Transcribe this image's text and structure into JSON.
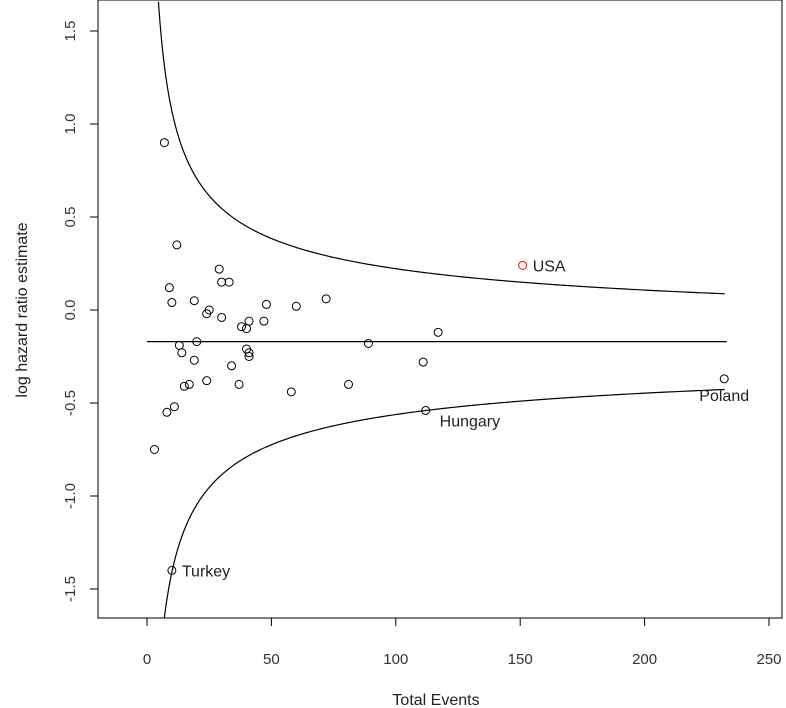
{
  "chart_data": {
    "type": "scatter",
    "title": "",
    "xlabel": "Total Events",
    "ylabel": "log hazard ratio estimate",
    "xlim": [
      -20,
      253
    ],
    "ylim": [
      -1.65,
      1.6
    ],
    "xticks": [
      0,
      50,
      100,
      150,
      200,
      250
    ],
    "xtick_labels": [
      "0",
      "50",
      "100",
      "150",
      "200",
      "250"
    ],
    "yticks": [
      -1.5,
      -1.0,
      -0.5,
      0.0,
      0.5,
      1.0,
      1.5
    ],
    "ytick_labels": [
      "-1.5",
      "-1.0",
      "-0.5",
      "0.0",
      "0.5",
      "1.0",
      "1.5"
    ],
    "grid": false,
    "pooled_estimate": -0.17,
    "funnel_limits": {
      "description": "95% control limits around pooled estimate",
      "center": -0.17,
      "z": 1.96,
      "x_range": [
        5,
        233
      ]
    },
    "points": [
      {
        "x": 3,
        "y": -0.75
      },
      {
        "x": 7,
        "y": 0.9
      },
      {
        "x": 8,
        "y": -0.55
      },
      {
        "x": 9,
        "y": 0.12
      },
      {
        "x": 10,
        "y": 0.04
      },
      {
        "x": 10,
        "y": -1.4,
        "label": "Turkey"
      },
      {
        "x": 11,
        "y": -0.52
      },
      {
        "x": 12,
        "y": 0.35
      },
      {
        "x": 13,
        "y": -0.19
      },
      {
        "x": 14,
        "y": -0.23
      },
      {
        "x": 15,
        "y": -0.41
      },
      {
        "x": 17,
        "y": -0.4
      },
      {
        "x": 19,
        "y": 0.05
      },
      {
        "x": 19,
        "y": -0.27
      },
      {
        "x": 20,
        "y": -0.17
      },
      {
        "x": 24,
        "y": -0.02
      },
      {
        "x": 24,
        "y": -0.38
      },
      {
        "x": 25,
        "y": 0.0
      },
      {
        "x": 29,
        "y": 0.22
      },
      {
        "x": 30,
        "y": 0.15
      },
      {
        "x": 30,
        "y": -0.04
      },
      {
        "x": 33,
        "y": 0.15
      },
      {
        "x": 34,
        "y": -0.3
      },
      {
        "x": 37,
        "y": -0.4
      },
      {
        "x": 38,
        "y": -0.09
      },
      {
        "x": 40,
        "y": -0.1
      },
      {
        "x": 40,
        "y": -0.21
      },
      {
        "x": 41,
        "y": -0.06
      },
      {
        "x": 41,
        "y": -0.23
      },
      {
        "x": 41,
        "y": -0.25
      },
      {
        "x": 47,
        "y": -0.06
      },
      {
        "x": 48,
        "y": 0.03
      },
      {
        "x": 58,
        "y": -0.44
      },
      {
        "x": 60,
        "y": 0.02
      },
      {
        "x": 72,
        "y": 0.06
      },
      {
        "x": 81,
        "y": -0.4
      },
      {
        "x": 89,
        "y": -0.18
      },
      {
        "x": 111,
        "y": -0.28
      },
      {
        "x": 112,
        "y": -0.54,
        "label": "Hungary"
      },
      {
        "x": 117,
        "y": -0.12
      },
      {
        "x": 151,
        "y": 0.24,
        "label": "USA",
        "highlight": true
      },
      {
        "x": 232,
        "y": -0.37,
        "label": "Poland"
      }
    ],
    "colors": {
      "point": "#000000",
      "highlight": "#ff0000",
      "line": "#000000"
    }
  }
}
